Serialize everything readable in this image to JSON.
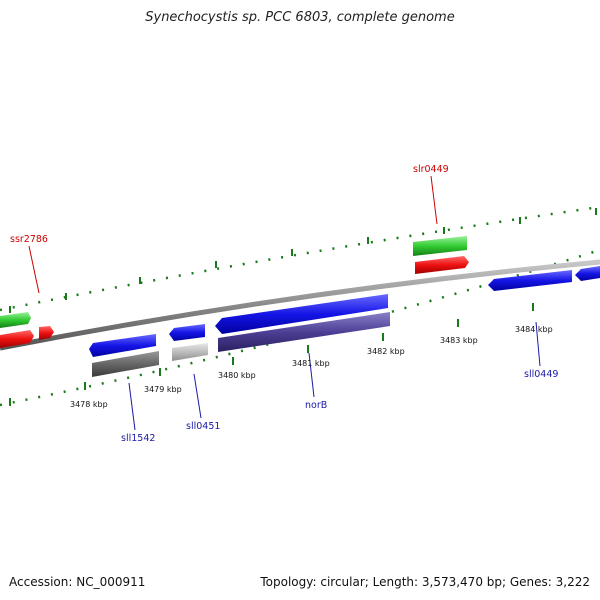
{
  "title": "Synechocystis sp. PCC 6803, complete genome",
  "footer": {
    "accession": "Accession: NC_000911",
    "summary": "Topology: circular; Length: 3,573,470 bp; Genes: 3,222"
  },
  "ticks": [
    "3478 kbp",
    "3479 kbp",
    "3480 kbp",
    "3481 kbp",
    "3482 kbp",
    "3483 kbp",
    "3484 kbp"
  ],
  "gene_labels": {
    "ssr2786": "ssr2786",
    "slr0449": "slr0449",
    "sll1542": "sll1542",
    "sll0451": "sll0451",
    "norB": "norB",
    "sll0449": "sll0449"
  },
  "colors": {
    "forward_gene": "#e01010",
    "forward_cds": "#22bb22",
    "reverse_gene": "#1010dd",
    "reverse_cds_grey": "#666666",
    "reverse_cds_light": "#bbbbbb",
    "reverse_cds_purple": "#4a3c8c",
    "backbone": "#888888",
    "tick": "#1a7a1a",
    "label_forward": "#cc0000",
    "label_reverse": "#1a1aa8"
  }
}
